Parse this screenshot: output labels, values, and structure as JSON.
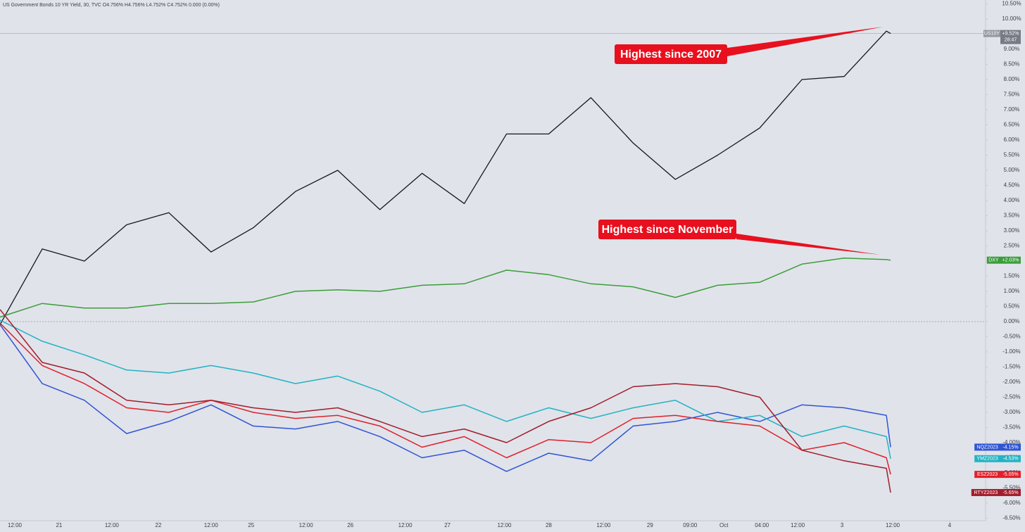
{
  "chart_data": {
    "type": "line",
    "title": "US Government Bonds 10 YR Yield, 30, TVC O4.756% H4.756% L4.752% C4.752% 0.000 (0.00%)",
    "countdown": "28:47",
    "annotations": [
      {
        "text": "Highest since 2007"
      },
      {
        "text": "Highest since November"
      }
    ],
    "x": [
      0,
      20,
      40,
      60,
      80,
      100,
      120,
      140,
      160,
      180,
      200,
      220,
      240,
      260,
      280,
      300,
      320,
      340,
      360,
      380,
      400,
      420,
      422
    ],
    "xlim": [
      0,
      467
    ],
    "xticks": [
      {
        "value": 7,
        "label": "12:00"
      },
      {
        "value": 28,
        "label": "21"
      },
      {
        "value": 53,
        "label": "12:00"
      },
      {
        "value": 75,
        "label": "22"
      },
      {
        "value": 100,
        "label": "12:00"
      },
      {
        "value": 119,
        "label": "25"
      },
      {
        "value": 145,
        "label": "12:00"
      },
      {
        "value": 166,
        "label": "26"
      },
      {
        "value": 192,
        "label": "12:00"
      },
      {
        "value": 212,
        "label": "27"
      },
      {
        "value": 239,
        "label": "12:00"
      },
      {
        "value": 260,
        "label": "28"
      },
      {
        "value": 286,
        "label": "12:00"
      },
      {
        "value": 308,
        "label": "29"
      },
      {
        "value": 327,
        "label": "09:00"
      },
      {
        "value": 343,
        "label": "Oct"
      },
      {
        "value": 361,
        "label": "04:00"
      },
      {
        "value": 378,
        "label": "12:00"
      },
      {
        "value": 399,
        "label": "3"
      },
      {
        "value": 423,
        "label": "12:00"
      },
      {
        "value": 450,
        "label": "4"
      }
    ],
    "ylim": [
      -6.5,
      10.5
    ],
    "yticks": [
      {
        "value": 10.5,
        "label": "10.50%"
      },
      {
        "value": 10,
        "label": "10.00%"
      },
      {
        "value": 9.5,
        "label": "9.50%"
      },
      {
        "value": 9,
        "label": "9.00%"
      },
      {
        "value": 8.5,
        "label": "8.50%"
      },
      {
        "value": 8,
        "label": "8.00%"
      },
      {
        "value": 7.5,
        "label": "7.50%"
      },
      {
        "value": 7,
        "label": "7.00%"
      },
      {
        "value": 6.5,
        "label": "6.50%"
      },
      {
        "value": 6,
        "label": "6.00%"
      },
      {
        "value": 5.5,
        "label": "5.50%"
      },
      {
        "value": 5,
        "label": "5.00%"
      },
      {
        "value": 4.5,
        "label": "4.50%"
      },
      {
        "value": 4,
        "label": "4.00%"
      },
      {
        "value": 3.5,
        "label": "3.50%"
      },
      {
        "value": 3,
        "label": "3.00%"
      },
      {
        "value": 2.5,
        "label": "2.50%"
      },
      {
        "value": 2,
        "label": "2.00%"
      },
      {
        "value": 1.5,
        "label": "1.50%"
      },
      {
        "value": 1,
        "label": "1.00%"
      },
      {
        "value": 0.5,
        "label": "0.50%"
      },
      {
        "value": 0,
        "label": "0.00%"
      },
      {
        "value": -0.5,
        "label": "-0.50%"
      },
      {
        "value": -1,
        "label": "-1.00%"
      },
      {
        "value": -1.5,
        "label": "-1.50%"
      },
      {
        "value": -2,
        "label": "-2.00%"
      },
      {
        "value": -2.5,
        "label": "-2.50%"
      },
      {
        "value": -3,
        "label": "-3.00%"
      },
      {
        "value": -3.5,
        "label": "-3.50%"
      },
      {
        "value": -4,
        "label": "-4.00%"
      },
      {
        "value": -4.5,
        "label": "-4.50%"
      },
      {
        "value": -5,
        "label": "-5.00%"
      },
      {
        "value": -5.5,
        "label": "-5.50%"
      },
      {
        "value": -6,
        "label": "-6.00%"
      },
      {
        "value": -6.5,
        "label": "-6.50%"
      }
    ],
    "grid": false,
    "series": [
      {
        "name": "US10Y",
        "color": "#131722",
        "values": [
          -0.1,
          2.4,
          2.0,
          3.2,
          3.6,
          2.3,
          3.1,
          4.3,
          5.0,
          3.7,
          4.9,
          3.9,
          6.2,
          6.2,
          7.4,
          5.9,
          4.7,
          5.5,
          6.4,
          8.0,
          8.1,
          9.6,
          9.52
        ],
        "value_labels": [
          null,
          null,
          null,
          null,
          null,
          null,
          null,
          null,
          null,
          null,
          null,
          null,
          null,
          null,
          null,
          null,
          null,
          null,
          null,
          null,
          null,
          null,
          "+9.52%"
        ]
      },
      {
        "name": "DXY",
        "color": "#3a9e3a",
        "values": [
          0.15,
          0.6,
          0.45,
          0.45,
          0.6,
          0.6,
          0.65,
          1.0,
          1.05,
          1.0,
          1.2,
          1.25,
          1.7,
          1.55,
          1.25,
          1.15,
          0.8,
          1.2,
          1.3,
          1.9,
          2.1,
          2.05,
          2.03
        ],
        "value_labels": [
          null,
          null,
          null,
          null,
          null,
          null,
          null,
          null,
          null,
          null,
          null,
          null,
          null,
          null,
          null,
          null,
          null,
          null,
          null,
          null,
          null,
          null,
          "+2.03%"
        ]
      },
      {
        "name": "NQZ2023",
        "color": "#2f55d4",
        "values": [
          -0.1,
          -2.05,
          -2.6,
          -3.7,
          -3.3,
          -2.75,
          -3.45,
          -3.55,
          -3.3,
          -3.8,
          -4.5,
          -4.25,
          -4.95,
          -4.35,
          -4.6,
          -3.45,
          -3.3,
          -3.0,
          -3.3,
          -2.75,
          -2.85,
          -3.1,
          -4.15
        ],
        "value_labels": [
          null,
          null,
          null,
          null,
          null,
          null,
          null,
          null,
          null,
          null,
          null,
          null,
          null,
          null,
          null,
          null,
          null,
          null,
          null,
          null,
          null,
          null,
          "-4.15%"
        ]
      },
      {
        "name": "YMZ2023",
        "color": "#22b3c4",
        "values": [
          0.05,
          -0.65,
          -1.1,
          -1.6,
          -1.7,
          -1.45,
          -1.7,
          -2.05,
          -1.8,
          -2.3,
          -3.0,
          -2.75,
          -3.3,
          -2.85,
          -3.2,
          -2.85,
          -2.6,
          -3.3,
          -3.1,
          -3.8,
          -3.45,
          -3.8,
          -4.53
        ],
        "value_labels": [
          null,
          null,
          null,
          null,
          null,
          null,
          null,
          null,
          null,
          null,
          null,
          null,
          null,
          null,
          null,
          null,
          null,
          null,
          null,
          null,
          null,
          null,
          "-4.53%"
        ]
      },
      {
        "name": "ESZ2023",
        "color": "#e0202a",
        "values": [
          -0.05,
          -1.45,
          -2.05,
          -2.85,
          -3.0,
          -2.6,
          -3.0,
          -3.2,
          -3.1,
          -3.45,
          -4.15,
          -3.8,
          -4.5,
          -3.9,
          -4.0,
          -3.2,
          -3.1,
          -3.3,
          -3.45,
          -4.25,
          -4.0,
          -4.5,
          -5.05
        ],
        "value_labels": [
          null,
          null,
          null,
          null,
          null,
          null,
          null,
          null,
          null,
          null,
          null,
          null,
          null,
          null,
          null,
          null,
          null,
          null,
          null,
          null,
          null,
          null,
          "-5.05%"
        ]
      },
      {
        "name": "RTYZ2023",
        "color": "#a11d2c",
        "values": [
          0.4,
          -1.35,
          -1.7,
          -2.6,
          -2.75,
          -2.6,
          -2.85,
          -3.0,
          -2.85,
          -3.3,
          -3.8,
          -3.55,
          -4.0,
          -3.3,
          -2.85,
          -2.15,
          -2.05,
          -2.15,
          -2.5,
          -4.25,
          -4.6,
          -4.85,
          -5.65
        ],
        "value_labels": [
          null,
          null,
          null,
          null,
          null,
          null,
          null,
          null,
          null,
          null,
          null,
          null,
          null,
          null,
          null,
          null,
          null,
          null,
          null,
          null,
          null,
          null,
          "-5.65%"
        ]
      }
    ]
  }
}
